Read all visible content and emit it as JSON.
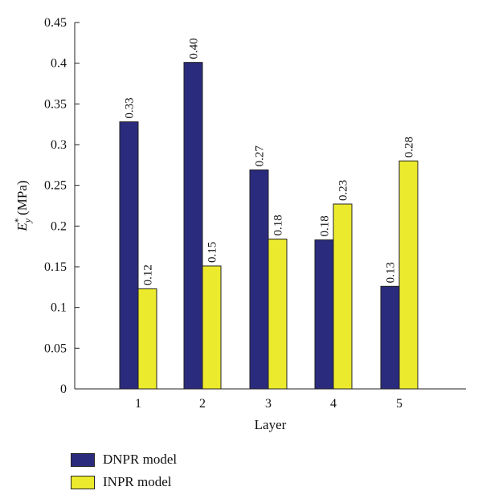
{
  "chart_data": {
    "type": "bar",
    "categories": [
      "1",
      "2",
      "3",
      "4",
      "5"
    ],
    "series": [
      {
        "name": "DNPR model",
        "values": [
          0.328,
          0.401,
          0.269,
          0.183,
          0.126
        ],
        "labels": [
          "0.33",
          "0.40",
          "0.27",
          "0.18",
          "0.13"
        ]
      },
      {
        "name": "INPR model",
        "values": [
          0.123,
          0.151,
          0.184,
          0.227,
          0.28
        ],
        "labels": [
          "0.12",
          "0.15",
          "0.18",
          "0.23",
          "0.28"
        ]
      }
    ],
    "colors": [
      "#2b2b7e",
      "#ecea2c"
    ],
    "xlabel": "Layer",
    "ylabel": {
      "base": "E",
      "sup": "*",
      "sub": "y",
      "unit": "(MPa)"
    },
    "ylim": [
      0,
      0.45
    ],
    "yticks": [
      0,
      0.05,
      0.1,
      0.15,
      0.2,
      0.25,
      0.3,
      0.35,
      0.4,
      0.45
    ],
    "ytick_labels": [
      "0",
      "0.05",
      "0.1",
      "0.15",
      "0.2",
      "0.25",
      "0.3",
      "0.35",
      "0.4",
      "0.45"
    ],
    "grid": false,
    "legend_position": "bottom-left"
  }
}
